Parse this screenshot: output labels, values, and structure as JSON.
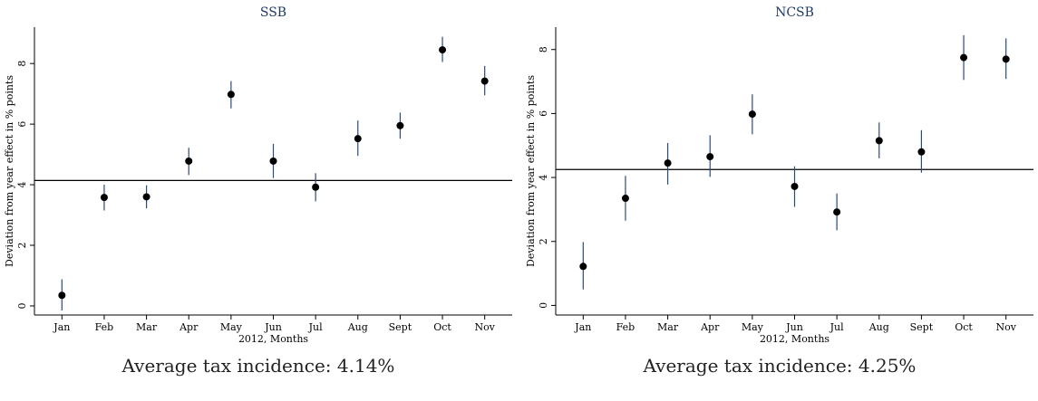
{
  "chart_data": [
    {
      "type": "scatter",
      "title": "SSB",
      "xlabel": "2012, Months",
      "ylabel": "Deviation from year effect in % points",
      "categories": [
        "Jan",
        "Feb",
        "Mar",
        "Apr",
        "May",
        "Jun",
        "Jul",
        "Aug",
        "Sept",
        "Oct",
        "Nov"
      ],
      "values": [
        0.35,
        3.58,
        3.6,
        4.78,
        6.98,
        4.78,
        3.92,
        5.52,
        5.95,
        8.45,
        7.42
      ],
      "ci_low": [
        -0.15,
        3.15,
        3.22,
        4.32,
        6.52,
        4.22,
        3.45,
        4.95,
        5.52,
        8.05,
        6.95
      ],
      "ci_high": [
        0.88,
        4.0,
        3.98,
        5.22,
        7.42,
        5.35,
        4.38,
        6.12,
        6.38,
        8.88,
        7.92
      ],
      "reference_line": 4.14,
      "ylim": [
        -0.3,
        9.2
      ],
      "yticks": [
        0,
        2,
        4,
        6,
        8
      ],
      "caption": "Average tax incidence: 4.14%"
    },
    {
      "type": "scatter",
      "title": "NCSB",
      "xlabel": "2012, Months",
      "ylabel": "Deviation from year effect in % points",
      "categories": [
        "Jan",
        "Feb",
        "Mar",
        "Apr",
        "May",
        "Jun",
        "Jul",
        "Aug",
        "Sept",
        "Oct",
        "Nov"
      ],
      "values": [
        1.22,
        3.35,
        4.45,
        4.65,
        5.98,
        3.72,
        2.92,
        5.15,
        4.8,
        7.75,
        7.7
      ],
      "ci_low": [
        0.5,
        2.65,
        3.78,
        4.02,
        5.35,
        3.08,
        2.35,
        4.6,
        4.15,
        7.05,
        7.08
      ],
      "ci_high": [
        1.98,
        4.05,
        5.08,
        5.32,
        6.6,
        4.35,
        3.5,
        5.72,
        5.48,
        8.45,
        8.35
      ],
      "reference_line": 4.25,
      "ylim": [
        -0.3,
        8.7
      ],
      "yticks": [
        0,
        2,
        4,
        6,
        8
      ],
      "caption": "Average tax incidence: 4.25%"
    }
  ]
}
